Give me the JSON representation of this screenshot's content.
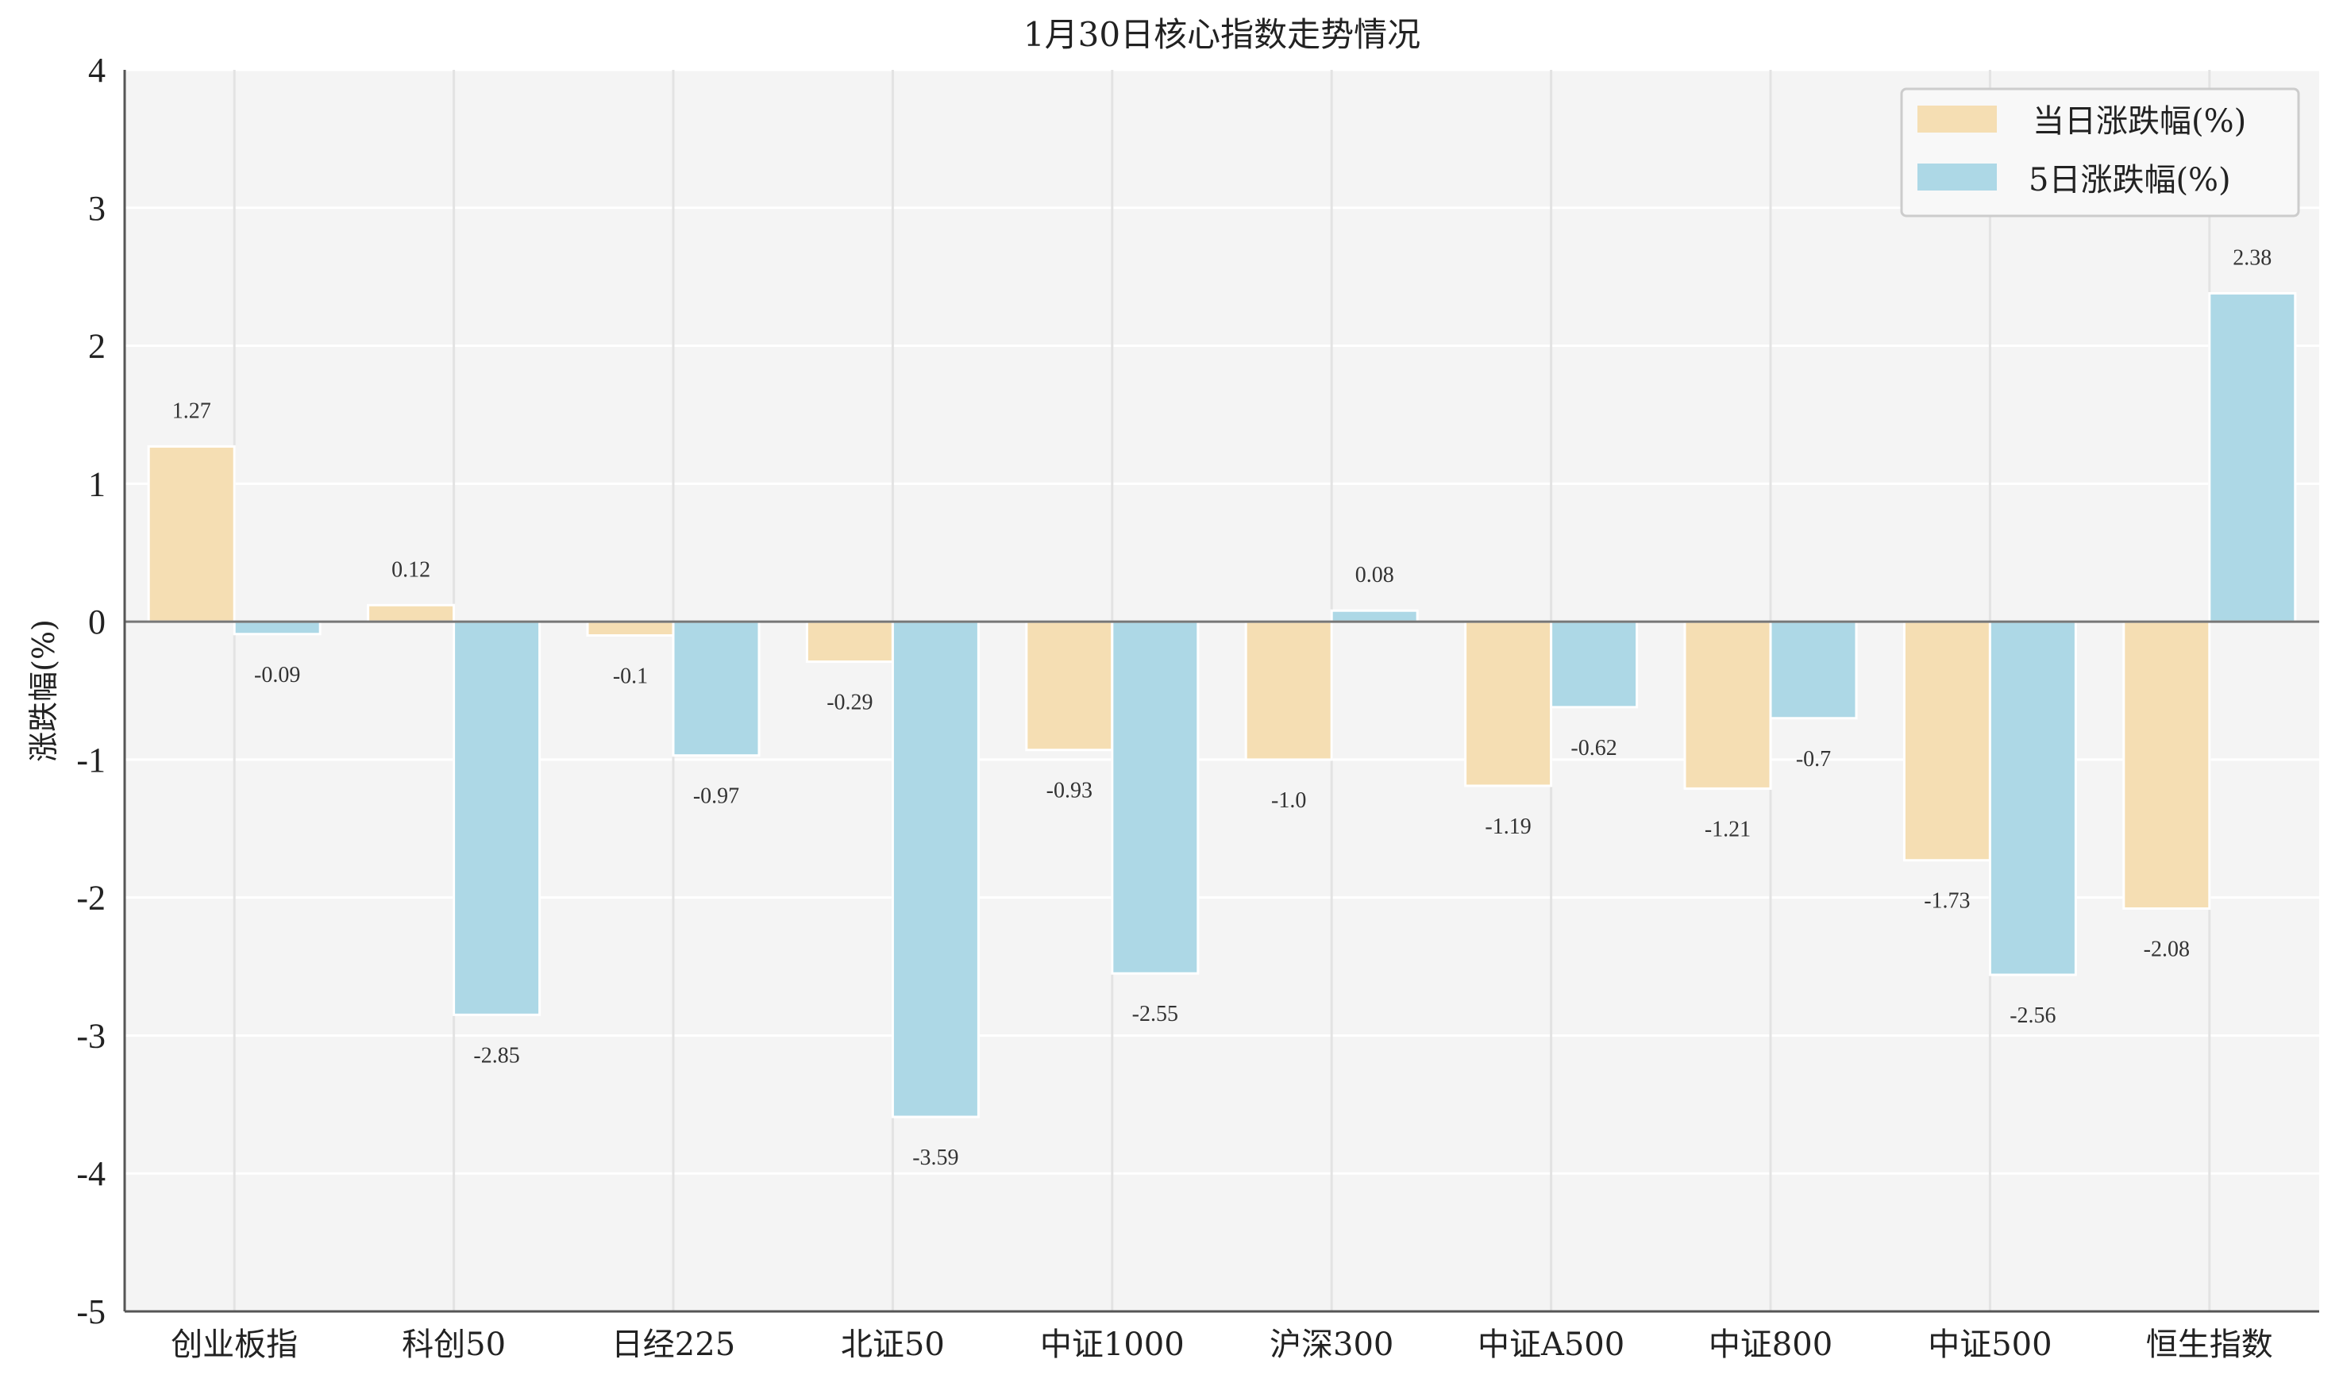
{
  "chart_data": {
    "type": "bar",
    "title": "1月30日核心指数走势情况",
    "xlabel": "",
    "ylabel": "涨跌幅(%)",
    "ylim": [
      -5,
      4
    ],
    "yticks": [
      4,
      3,
      2,
      1,
      0,
      -1,
      -2,
      -3,
      -4,
      -5
    ],
    "grid": true,
    "legend_position": "top-right",
    "categories": [
      "创业板指",
      "科创50",
      "日经225",
      "北证50",
      "中证1000",
      "沪深300",
      "中证A500",
      "中证800",
      "中证500",
      "恒生指数"
    ],
    "series": [
      {
        "name": "当日涨跌幅(%)",
        "color": "#F5DEB3",
        "values": [
          1.27,
          0.12,
          -0.1,
          -0.29,
          -0.93,
          -1.0,
          -1.19,
          -1.21,
          -1.73,
          -2.08
        ],
        "labels": [
          "1.27",
          "0.12",
          "-0.1",
          "-0.29",
          "-0.93",
          "-1.0",
          "-1.19",
          "-1.21",
          "-1.73",
          "-2.08"
        ]
      },
      {
        "name": "5日涨跌幅(%)",
        "color": "#ADD8E6",
        "values": [
          -0.09,
          -2.85,
          -0.97,
          -3.59,
          -2.55,
          0.08,
          -0.62,
          -0.7,
          -2.56,
          2.38
        ],
        "labels": [
          "-0.09",
          "-2.85",
          "-0.97",
          "-3.59",
          "-2.55",
          "0.08",
          "-0.62",
          "-0.7",
          "-2.56",
          "2.38"
        ]
      }
    ]
  }
}
